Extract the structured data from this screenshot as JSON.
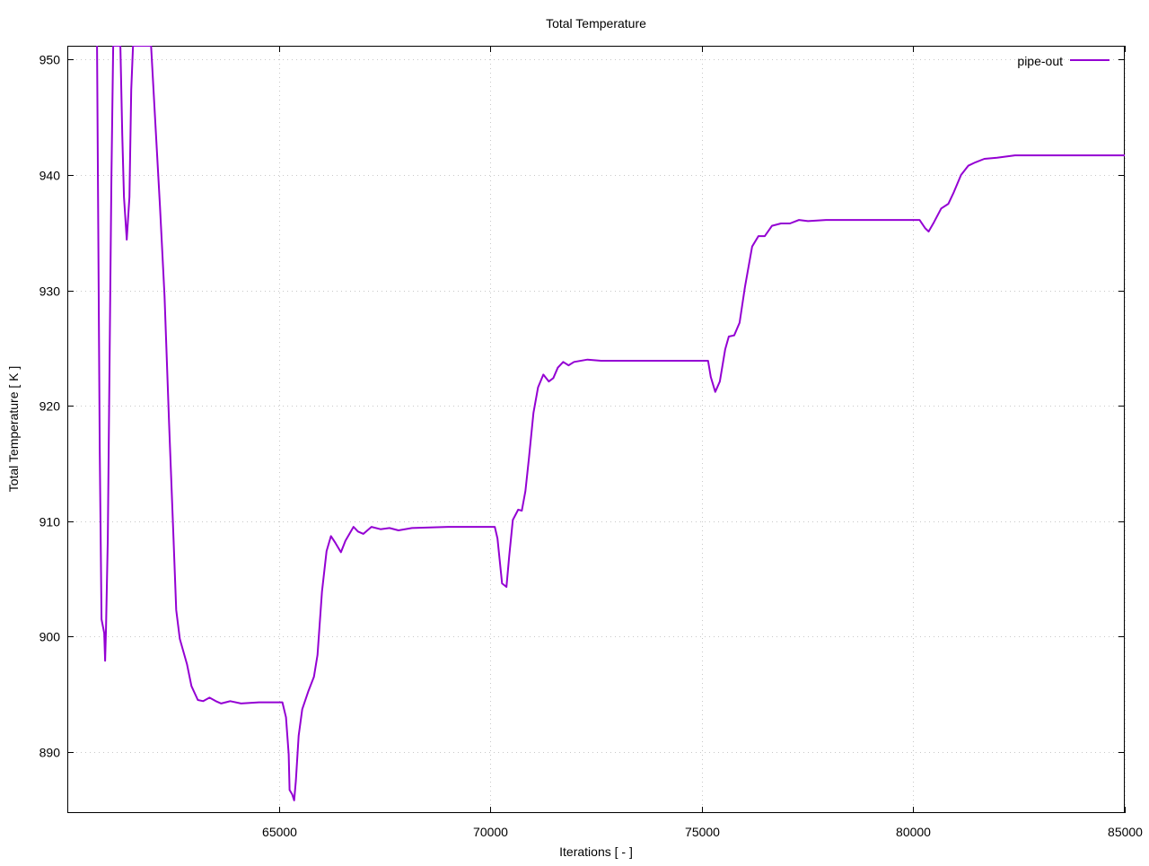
{
  "chart_data": {
    "type": "line",
    "title": "Total Temperature",
    "xlabel": "Iterations [ - ]",
    "ylabel": "Total Temperature [ K ]",
    "xlim": [
      60000,
      85000
    ],
    "ylim": [
      884.7,
      951.2
    ],
    "xticks": [
      65000,
      70000,
      75000,
      80000,
      85000
    ],
    "yticks": [
      890,
      900,
      910,
      920,
      930,
      940,
      950
    ],
    "grid": true,
    "legend_position": "top-right",
    "colors": {
      "series": "#9400d3"
    },
    "series": [
      {
        "name": "pipe-out",
        "x": [
          60702,
          60723,
          60766,
          60809,
          60872,
          60894,
          60915,
          60957,
          61000,
          61043,
          61085,
          61255,
          61298,
          61340,
          61404,
          61468,
          61511,
          61553,
          61979,
          62085,
          62191,
          62298,
          62404,
          62511,
          62574,
          62660,
          62830,
          62936,
          63085,
          63213,
          63362,
          63511,
          63638,
          63851,
          64106,
          64532,
          65085,
          65170,
          65234,
          65255,
          65319,
          65362,
          65404,
          65468,
          65553,
          65702,
          65830,
          65915,
          66021,
          66128,
          66234,
          66340,
          66468,
          66574,
          66766,
          66872,
          67000,
          67191,
          67404,
          67617,
          67830,
          68149,
          69000,
          70106,
          70170,
          70277,
          70383,
          70447,
          70532,
          70660,
          70745,
          70830,
          70915,
          71021,
          71128,
          71255,
          71383,
          71489,
          71596,
          71723,
          71851,
          71979,
          72298,
          72617,
          73255,
          75149,
          75213,
          75319,
          75426,
          75553,
          75638,
          75766,
          75894,
          76021,
          76191,
          76340,
          76489,
          76660,
          76872,
          77085,
          77298,
          77511,
          77936,
          80149,
          80277,
          80362,
          80489,
          80660,
          80830,
          80957,
          81128,
          81298,
          81468,
          81681,
          81979,
          82404,
          83043,
          85000
        ],
        "y": [
          951.2,
          939.6,
          916.3,
          901.5,
          900.3,
          897.9,
          900.7,
          908.5,
          924.1,
          939.6,
          951.2,
          951.2,
          943.5,
          938.1,
          934.4,
          938.1,
          947.4,
          951.2,
          951.2,
          944.3,
          937.3,
          929.5,
          918.6,
          908.5,
          902.3,
          899.8,
          897.6,
          895.7,
          894.5,
          894.4,
          894.7,
          894.4,
          894.2,
          894.4,
          894.2,
          894.3,
          894.3,
          893.0,
          889.8,
          886.7,
          886.3,
          885.8,
          887.5,
          891.4,
          893.7,
          895.3,
          896.5,
          898.4,
          903.9,
          907.4,
          908.7,
          908.1,
          907.3,
          908.3,
          909.5,
          909.1,
          908.9,
          909.5,
          909.3,
          909.4,
          909.2,
          909.4,
          909.5,
          909.5,
          908.5,
          904.6,
          904.3,
          907.0,
          910.1,
          911.0,
          910.9,
          912.6,
          915.5,
          919.4,
          921.6,
          922.7,
          922.1,
          922.4,
          923.3,
          923.8,
          923.5,
          923.8,
          924.0,
          923.9,
          923.9,
          923.9,
          922.5,
          921.2,
          922.1,
          924.9,
          926.0,
          926.1,
          927.2,
          930.3,
          933.8,
          934.7,
          934.7,
          935.6,
          935.8,
          935.8,
          936.1,
          936.0,
          936.1,
          936.1,
          935.4,
          935.1,
          935.9,
          937.1,
          937.5,
          938.5,
          940.0,
          940.8,
          941.1,
          941.4,
          941.5,
          941.7,
          941.7,
          941.7
        ]
      }
    ]
  }
}
